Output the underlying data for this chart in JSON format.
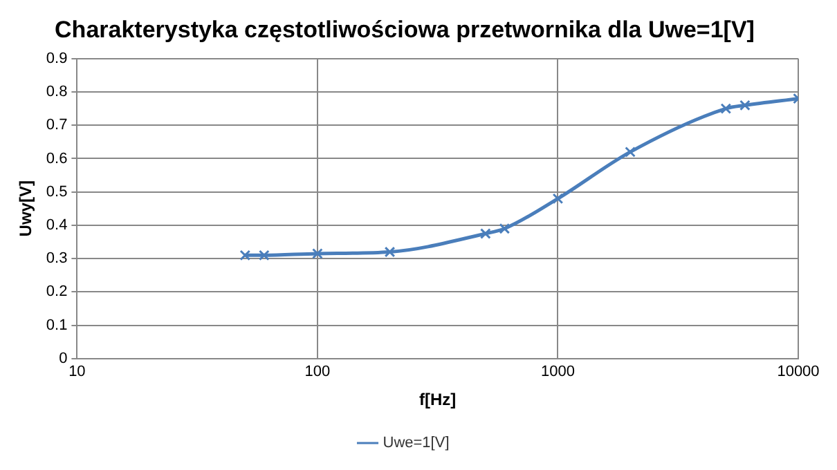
{
  "chart_data": {
    "type": "line",
    "title": "Charakterystyka częstotliwościowa przetwornika dla Uwe=1[V]",
    "xlabel": "f[Hz]",
    "ylabel": "Uwy[V]",
    "x": [
      50,
      60,
      100,
      200,
      500,
      600,
      1000,
      2000,
      5000,
      6000,
      10000
    ],
    "series": [
      {
        "name": "Uwe=1[V]",
        "color": "#4a7ebb",
        "values": [
          0.31,
          0.31,
          0.315,
          0.32,
          0.375,
          0.39,
          0.48,
          0.62,
          0.75,
          0.76,
          0.78
        ]
      }
    ],
    "log": "x",
    "xlim": [
      10,
      10000
    ],
    "xticks": [
      10,
      100,
      1000,
      10000
    ],
    "ylim": [
      0,
      0.9
    ],
    "yticks": [
      0,
      0.1,
      0.2,
      0.3,
      0.4,
      0.5,
      0.6,
      0.7,
      0.8,
      0.9
    ],
    "grid": true,
    "legend": "bottom",
    "marker": "cross",
    "line_style": "solid"
  }
}
